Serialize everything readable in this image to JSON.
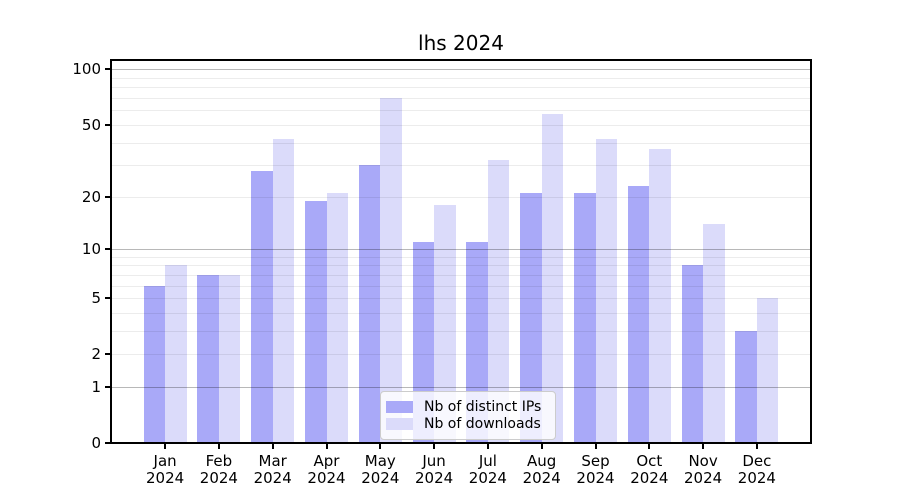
{
  "chart_data": {
    "type": "bar",
    "title": "lhs 2024",
    "categories": [
      "Jan",
      "Feb",
      "Mar",
      "Apr",
      "May",
      "Jun",
      "Jul",
      "Aug",
      "Sep",
      "Oct",
      "Nov",
      "Dec"
    ],
    "x_tick_year": "2024",
    "series": [
      {
        "name": "Nb of distinct IPs",
        "color": "#a9a9f8",
        "values": [
          6,
          7,
          28,
          19,
          30,
          11,
          11,
          21,
          21,
          23,
          8,
          3
        ]
      },
      {
        "name": "Nb of downloads",
        "color": "#dbdbfa",
        "values": [
          8,
          7,
          42,
          21,
          70,
          18,
          32,
          57,
          42,
          37,
          14,
          5
        ]
      }
    ],
    "yscale": "log1p",
    "ylim": [
      0,
      112
    ],
    "y_tick_values": [
      0,
      1,
      2,
      5,
      10,
      20,
      50,
      100
    ],
    "y_major_gridlines": [
      1,
      10,
      100
    ],
    "y_minor_gridlines": [
      2,
      3,
      4,
      5,
      6,
      7,
      8,
      9,
      20,
      30,
      40,
      50,
      60,
      70,
      80,
      90
    ],
    "grid": true,
    "legend_position": "lower center",
    "axis_color": "#000000",
    "background_color": "#ffffff"
  }
}
